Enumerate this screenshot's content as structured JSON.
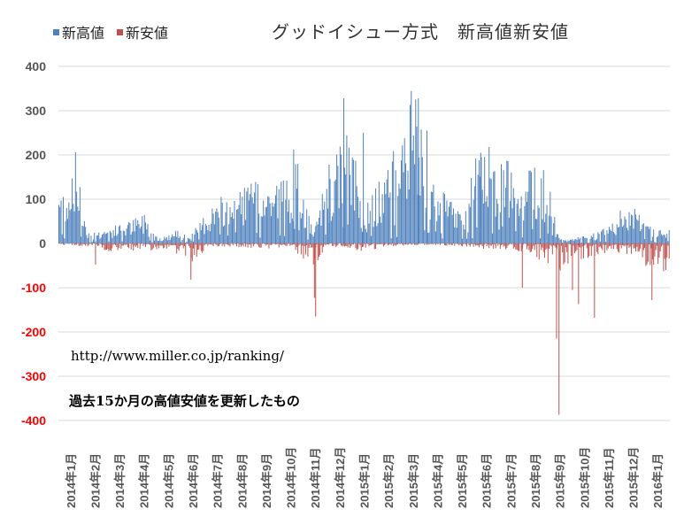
{
  "chart_data": {
    "type": "bar",
    "title": "グッドイシュー方式　新高値新安値",
    "series": [
      {
        "name": "新高値",
        "color": "#4f81bd"
      },
      {
        "name": "新安値",
        "color": "#c0504d"
      }
    ],
    "ylim": [
      -400,
      400
    ],
    "yticks": [
      {
        "label": "400",
        "value": 400,
        "color": "#555555"
      },
      {
        "label": "300",
        "value": 300,
        "color": "#555555"
      },
      {
        "label": "200",
        "value": 200,
        "color": "#555555"
      },
      {
        "label": "100",
        "value": 100,
        "color": "#555555"
      },
      {
        "label": "0",
        "value": 0,
        "color": "#555555"
      },
      {
        "label": "-100",
        "value": -100,
        "color": "#ff0000"
      },
      {
        "label": "-200",
        "value": -200,
        "color": "#ff0000"
      },
      {
        "label": "-300",
        "value": -300,
        "color": "#ff0000"
      },
      {
        "label": "-400",
        "value": -400,
        "color": "#ff0000"
      }
    ],
    "categories": [
      "2014年1月",
      "2014年2月",
      "2014年3月",
      "2014年4月",
      "2014年5月",
      "2014年6月",
      "2014年7月",
      "2014年8月",
      "2014年9月",
      "2014年10月",
      "2014年11月",
      "2014年12月",
      "2015年1月",
      "2015年2月",
      "2015年3月",
      "2015年4月",
      "2015年5月",
      "2015年6月",
      "2015年7月",
      "2015年8月",
      "2015年9月",
      "2015年10月",
      "2015年11月",
      "2015年12月",
      "2016年1月"
    ],
    "grid": true,
    "legend_position": "top-left",
    "new_highs_profile": [
      [
        0,
        110
      ],
      [
        0.15,
        195
      ],
      [
        0.3,
        150
      ],
      [
        0.5,
        75
      ],
      [
        0.8,
        20
      ],
      [
        1.2,
        25
      ],
      [
        2.0,
        35
      ],
      [
        2.9,
        50
      ],
      [
        3.1,
        62
      ],
      [
        3.4,
        20
      ],
      [
        3.8,
        12
      ],
      [
        4.4,
        25
      ],
      [
        5.0,
        18
      ],
      [
        5.5,
        55
      ],
      [
        6.0,
        80
      ],
      [
        6.5,
        95
      ],
      [
        7.0,
        110
      ],
      [
        7.5,
        115
      ],
      [
        8.0,
        105
      ],
      [
        8.5,
        120
      ],
      [
        9.0,
        130
      ],
      [
        9.3,
        150
      ],
      [
        9.6,
        80
      ],
      [
        10.0,
        20
      ],
      [
        10.3,
        90
      ],
      [
        10.5,
        140
      ],
      [
        10.7,
        110
      ],
      [
        11.0,
        190
      ],
      [
        11.5,
        205
      ],
      [
        12.0,
        60
      ],
      [
        12.5,
        100
      ],
      [
        13.0,
        150
      ],
      [
        13.5,
        190
      ],
      [
        13.8,
        240
      ],
      [
        14.0,
        290
      ],
      [
        14.3,
        230
      ],
      [
        14.6,
        150
      ],
      [
        15.0,
        105
      ],
      [
        15.5,
        85
      ],
      [
        16.0,
        60
      ],
      [
        16.5,
        145
      ],
      [
        17.0,
        190
      ],
      [
        17.5,
        170
      ],
      [
        18.0,
        150
      ],
      [
        18.5,
        140
      ],
      [
        19.0,
        160
      ],
      [
        19.5,
        130
      ],
      [
        20.0,
        10
      ],
      [
        20.5,
        8
      ],
      [
        21.0,
        15
      ],
      [
        21.5,
        20
      ],
      [
        22.0,
        40
      ],
      [
        22.5,
        60
      ],
      [
        23.0,
        75
      ],
      [
        23.5,
        50
      ],
      [
        24.0,
        25
      ]
    ],
    "new_highs_spikes": [
      {
        "month": 11.15,
        "value": 328
      },
      {
        "month": 14.2,
        "value": 328
      },
      {
        "month": 14.55,
        "value": 255
      },
      {
        "month": 10.55,
        "value": 178
      },
      {
        "month": 9.1,
        "value": 212
      },
      {
        "month": 16.75,
        "value": 205
      },
      {
        "month": 11.95,
        "value": 250
      }
    ],
    "new_lows_profile": [
      [
        0,
        -3
      ],
      [
        1.0,
        -8
      ],
      [
        2.2,
        -20
      ],
      [
        3.0,
        -10
      ],
      [
        4.5,
        -20
      ],
      [
        5.0,
        -35
      ],
      [
        5.8,
        -5
      ],
      [
        7.0,
        -8
      ],
      [
        8.0,
        -10
      ],
      [
        9.0,
        -5
      ],
      [
        9.6,
        -30
      ],
      [
        10.0,
        -45
      ],
      [
        10.4,
        -10
      ],
      [
        11.0,
        -5
      ],
      [
        12.0,
        -15
      ],
      [
        13.0,
        -5
      ],
      [
        15.0,
        -3
      ],
      [
        16.0,
        -5
      ],
      [
        17.0,
        -10
      ],
      [
        18.0,
        -12
      ],
      [
        19.0,
        -20
      ],
      [
        19.4,
        -40
      ],
      [
        20.0,
        -60
      ],
      [
        20.3,
        -40
      ],
      [
        20.6,
        -20
      ],
      [
        21.0,
        -30
      ],
      [
        22.0,
        -15
      ],
      [
        23.0,
        -20
      ],
      [
        23.5,
        -40
      ],
      [
        24.0,
        -50
      ]
    ],
    "new_lows_spikes": [
      {
        "month": 1.0,
        "value": -48
      },
      {
        "month": 4.9,
        "value": -82
      },
      {
        "month": 9.95,
        "value": -123
      },
      {
        "month": 10.0,
        "value": -165
      },
      {
        "month": 18.45,
        "value": -100
      },
      {
        "month": 19.85,
        "value": -215
      },
      {
        "month": 19.95,
        "value": -387
      },
      {
        "month": 20.5,
        "value": -105
      },
      {
        "month": 20.75,
        "value": -137
      },
      {
        "month": 21.4,
        "value": -168
      },
      {
        "month": 23.75,
        "value": -128
      }
    ]
  },
  "notes": {
    "url": "http://www.miller.co.jp/ranking/",
    "description": "過去15か月の高値安値を更新したもの"
  }
}
